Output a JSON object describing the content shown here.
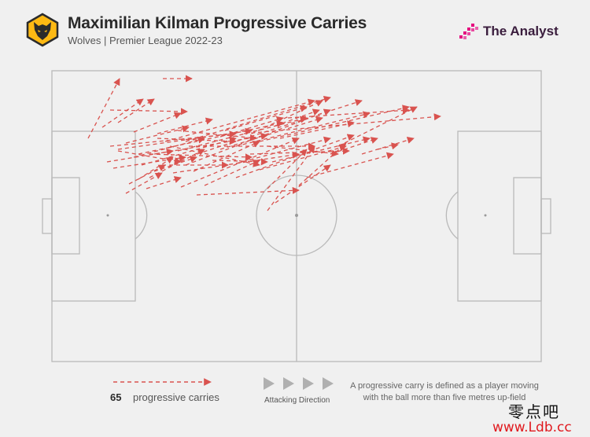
{
  "header": {
    "title": "Maximilian Kilman Progressive Carries",
    "subtitle": "Wolves | Premier League 2022-23",
    "brand": "The Analyst",
    "crest_icon": "wolf-head-icon"
  },
  "colors": {
    "carry": "#d9534f",
    "pitch_line": "#b9b9b9",
    "background": "#f0f0f0",
    "crest_orange": "#fdb913",
    "brand_pink": "#e5007e"
  },
  "legend": {
    "count": "65",
    "count_label": "progressive carries",
    "direction_label": "Attacking Direction",
    "definition": "A progressive carry is defined as a player moving with the ball more than five metres up-field"
  },
  "watermark": {
    "chinese": "零点吧",
    "url": "www.Ldb.cc"
  }
}
